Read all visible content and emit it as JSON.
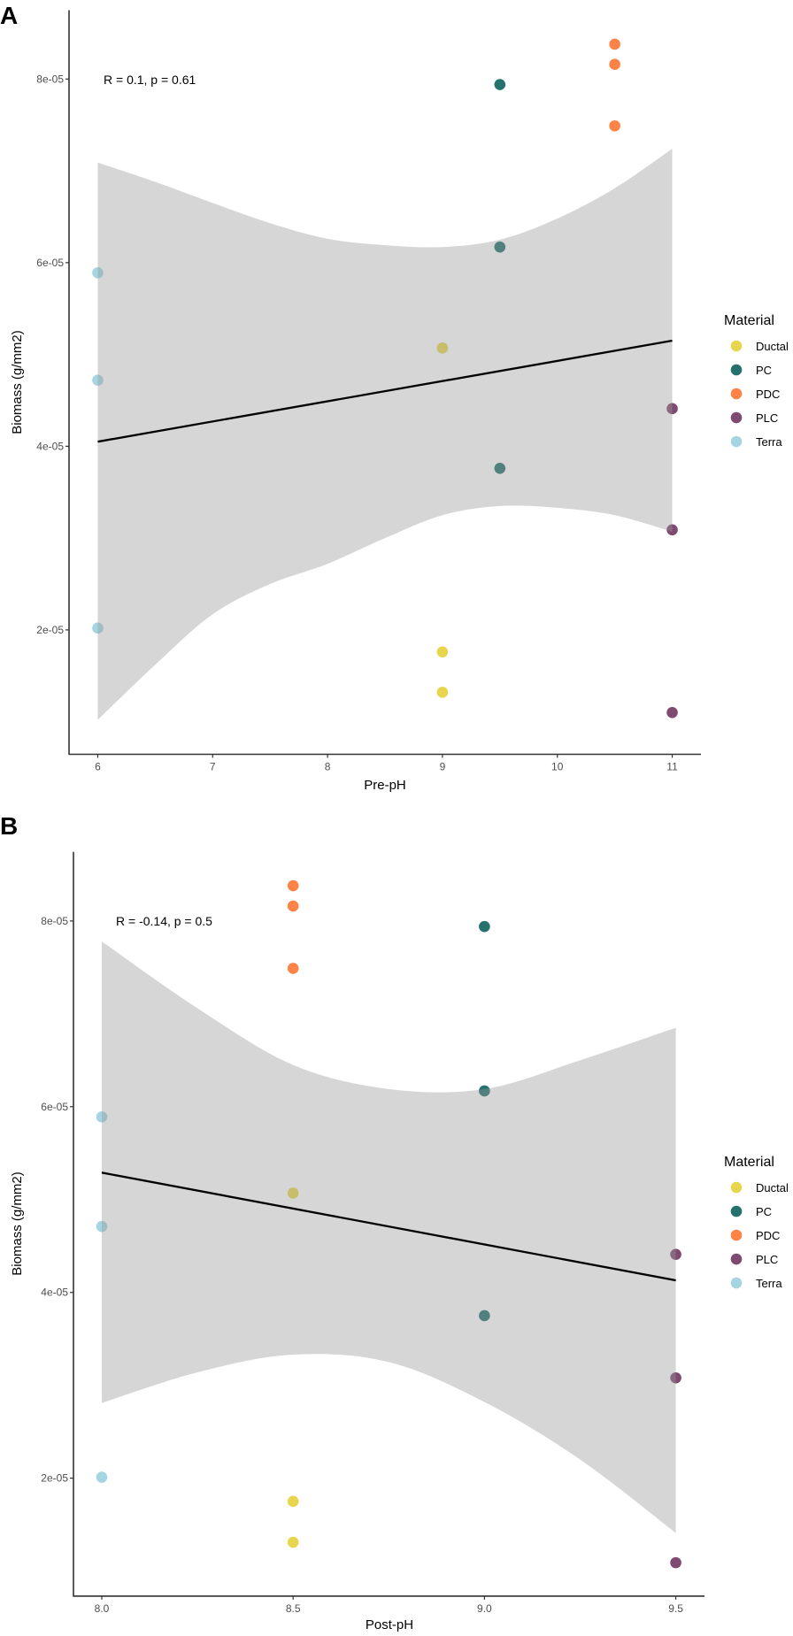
{
  "legend": {
    "title": "Material",
    "entries": [
      {
        "label": "Ductal",
        "color": "#E8D54E"
      },
      {
        "label": "PC",
        "color": "#24716E"
      },
      {
        "label": "PDC",
        "color": "#FF8247"
      },
      {
        "label": "PLC",
        "color": "#7E4A71"
      },
      {
        "label": "Terra",
        "color": "#A6D5E2"
      }
    ]
  },
  "chart_data": [
    {
      "type": "scatter",
      "panel_label": "A",
      "xlabel": "Pre-pH",
      "ylabel": "Biomass (g/mm2)",
      "annotation": "R = 0.1, p = 0.61",
      "xlim": [
        5.75,
        11.25
      ],
      "ylim": [
        6.45e-06,
        8.75e-05
      ],
      "xticks": [
        6,
        7,
        8,
        9,
        10,
        11
      ],
      "xtick_labels": [
        "6",
        "7",
        "8",
        "9",
        "10",
        "11"
      ],
      "yticks": [
        2e-05,
        4e-05,
        6e-05,
        8e-05
      ],
      "ytick_labels": [
        "2e-05",
        "4e-05",
        "6e-05",
        "8e-05"
      ],
      "grid": false,
      "legend_position": "right",
      "series": [
        {
          "name": "Ductal",
          "x": [
            9,
            9,
            9
          ],
          "y": [
            5.07e-05,
            1.76e-05,
            1.32e-05
          ]
        },
        {
          "name": "PC",
          "x": [
            9.5,
            9.5,
            9.5
          ],
          "y": [
            7.94e-05,
            6.17e-05,
            3.76e-05
          ]
        },
        {
          "name": "PDC",
          "x": [
            10.5,
            10.5,
            10.5
          ],
          "y": [
            8.38e-05,
            8.16e-05,
            7.49e-05
          ]
        },
        {
          "name": "PLC",
          "x": [
            11,
            11,
            11
          ],
          "y": [
            4.41e-05,
            3.09e-05,
            1.1e-05
          ]
        },
        {
          "name": "Terra",
          "x": [
            6,
            6,
            6
          ],
          "y": [
            5.89e-05,
            4.72e-05,
            2.02e-05
          ]
        }
      ],
      "fit": {
        "x": [
          6,
          11
        ],
        "y": [
          4.05e-05,
          5.15e-05
        ]
      },
      "confidence_band": {
        "x": [
          6,
          6.5,
          7,
          7.5,
          8,
          8.5,
          9,
          9.5,
          10,
          10.5,
          11
        ],
        "upper": [
          7.09e-05,
          6.88e-05,
          6.65e-05,
          6.43e-05,
          6.26e-05,
          6.19e-05,
          6.17e-05,
          6.25e-05,
          6.48e-05,
          6.81e-05,
          7.24e-05
        ],
        "lower": [
          1.02e-05,
          1.62e-05,
          2.17e-05,
          2.5e-05,
          2.72e-05,
          3e-05,
          3.25e-05,
          3.35e-05,
          3.33e-05,
          3.25e-05,
          3.07e-05
        ]
      }
    },
    {
      "type": "scatter",
      "panel_label": "B",
      "xlabel": "Post-pH",
      "ylabel": "Biomass (g/mm2)",
      "annotation": "R = -0.14, p = 0.5",
      "xlim": [
        7.926,
        9.575
      ],
      "ylim": [
        7.3e-06,
        8.745e-05
      ],
      "xticks": [
        8.0,
        8.5,
        9.0,
        9.5
      ],
      "xtick_labels": [
        "8.0",
        "8.5",
        "9.0",
        "9.5"
      ],
      "yticks": [
        2e-05,
        4e-05,
        6e-05,
        8e-05
      ],
      "ytick_labels": [
        "2e-05",
        "4e-05",
        "6e-05",
        "8e-05"
      ],
      "grid": false,
      "legend_position": "right",
      "series": [
        {
          "name": "Ductal",
          "x": [
            8.5,
            8.5,
            8.5
          ],
          "y": [
            5.07e-05,
            1.75e-05,
            1.31e-05
          ]
        },
        {
          "name": "PC",
          "x": [
            9.0,
            9.0,
            9.0
          ],
          "y": [
            7.94e-05,
            6.17e-05,
            3.75e-05
          ]
        },
        {
          "name": "PDC",
          "x": [
            8.5,
            8.5,
            8.5
          ],
          "y": [
            8.38e-05,
            8.16e-05,
            7.49e-05
          ]
        },
        {
          "name": "PLC",
          "x": [
            9.5,
            9.5,
            9.5
          ],
          "y": [
            4.41e-05,
            3.08e-05,
            1.09e-05
          ]
        },
        {
          "name": "Terra",
          "x": [
            8.0,
            8.0,
            8.0
          ],
          "y": [
            5.89e-05,
            4.71e-05,
            2.01e-05
          ]
        }
      ],
      "fit": {
        "x": [
          8.0,
          9.5
        ],
        "y": [
          5.29e-05,
          4.13e-05
        ]
      },
      "confidence_band": {
        "x": [
          8.0,
          8.25,
          8.5,
          8.75,
          9.0,
          9.25,
          9.5
        ],
        "upper": [
          7.78e-05,
          7.06e-05,
          6.45e-05,
          6.19e-05,
          6.19e-05,
          6.5e-05,
          6.85e-05
        ],
        "lower": [
          2.81e-05,
          3.14e-05,
          3.33e-05,
          3.25e-05,
          2.82e-05,
          2.2e-05,
          1.41e-05
        ]
      }
    }
  ]
}
